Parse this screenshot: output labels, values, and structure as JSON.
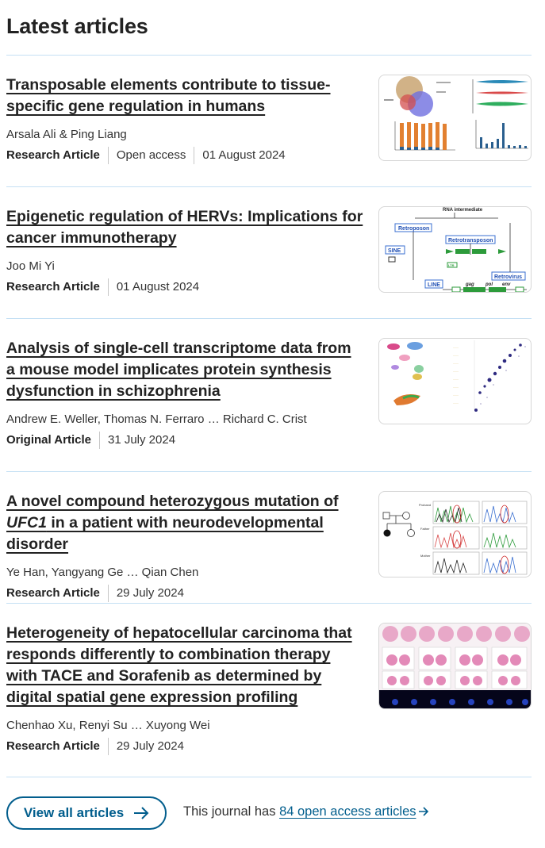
{
  "section": {
    "heading": "Latest articles"
  },
  "articles": [
    {
      "title": "Transposable elements contribute to tissue-specific gene regulation in humans",
      "authors": "Arsala Ali & Ping Liang",
      "type": "Research Article",
      "access": "Open access",
      "date": "01 August 2024",
      "thumbnail_icon": "figure-venn-bar-chart"
    },
    {
      "title": "Epigenetic regulation of HERVs: Implications for cancer immunotherapy",
      "authors": "Joo Mi Yi",
      "type": "Research Article",
      "date": "01 August 2024",
      "thumbnail_icon": "figure-retrotransposon-diagram",
      "thumb_labels": [
        "RNA intermediate",
        "Retroposon",
        "Retrotransposon",
        "SINE",
        "LINE",
        "Retrovirus",
        "gag",
        "pol",
        "env",
        "LTR"
      ]
    },
    {
      "title": "Analysis of single-cell transcriptome data from a mouse model implicates protein synthesis dysfunction in schizophrenia",
      "authors": "Andrew E. Weller, Thomas N. Ferraro … Richard C. Crist",
      "type": "Original Article",
      "date": "31 July 2024",
      "thumbnail_icon": "figure-umap-dotplot"
    },
    {
      "title_prefix": "A novel compound heterozygous mutation of ",
      "title_italic": "UFC1",
      "title_suffix": " in a patient with neurodevelopmental disorder",
      "authors": "Ye Han, Yangyang Ge … Qian Chen",
      "type": "Research Article",
      "date": "29 July 2024",
      "thumbnail_icon": "figure-pedigree-chromatogram",
      "thumb_labels": [
        "Proband",
        "Father",
        "Mother"
      ]
    },
    {
      "title": "Heterogeneity of hepatocellular carcinoma that responds differently to combination therapy with TACE and Sorafenib as determined by digital spatial gene expression profiling",
      "authors": "Chenhao Xu, Renyi Su … Xuyong Wei",
      "type": "Research Article",
      "date": "29 July 2024",
      "thumbnail_icon": "figure-tissue-slides"
    }
  ],
  "footer": {
    "view_all_label": "View all articles",
    "oa_prefix": "This journal has ",
    "oa_link": "84 open access articles"
  },
  "colors": {
    "link": "#025e8d",
    "divider": "#c5e0f4",
    "text": "#222222"
  },
  "icons": {
    "button_arrow": "arrow-right-icon",
    "link_arrow": "arrow-right-icon"
  }
}
